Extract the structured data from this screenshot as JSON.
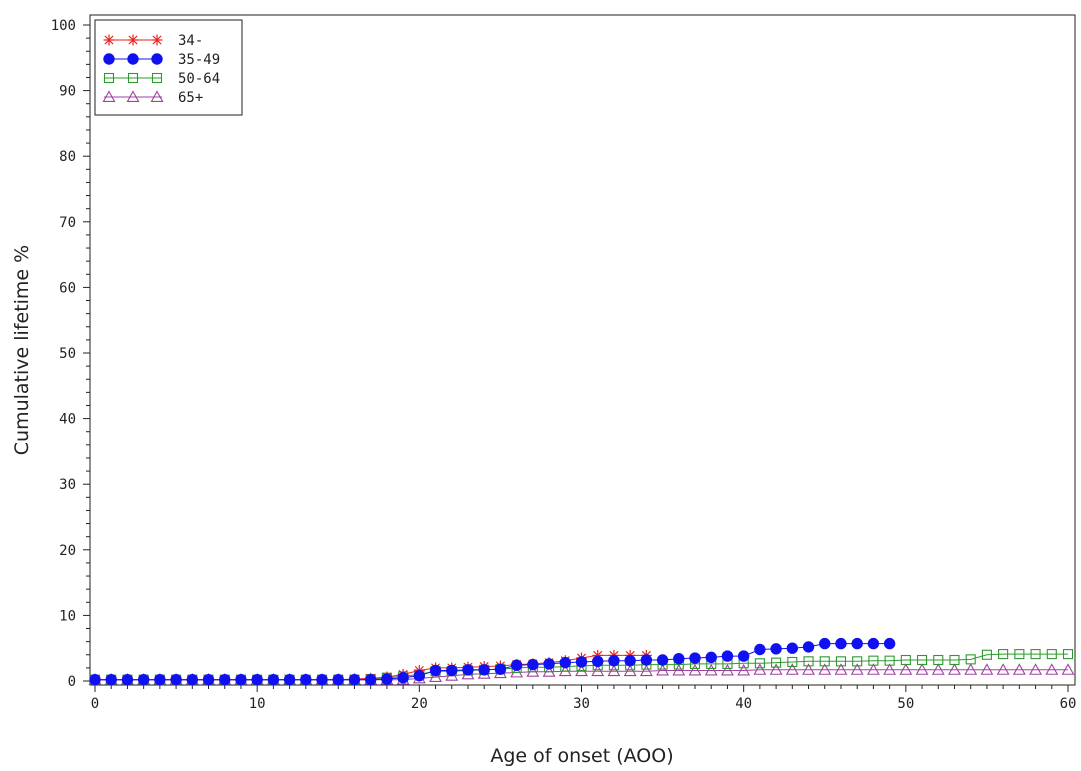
{
  "chart_data": {
    "type": "line",
    "xlabel": "Age of onset (AOO)",
    "ylabel": "Cumulative lifetime %",
    "xlim": [
      0,
      60
    ],
    "ylim": [
      0,
      100
    ],
    "xticks": [
      0,
      10,
      20,
      30,
      40,
      50,
      60
    ],
    "yticks": [
      0,
      10,
      20,
      30,
      40,
      50,
      60,
      70,
      80,
      90,
      100
    ],
    "grid": false,
    "legend_position": "top-left",
    "series": [
      {
        "name": "34-",
        "color": "#e8231f",
        "marker": "star",
        "x": [
          0,
          1,
          2,
          3,
          4,
          5,
          6,
          7,
          8,
          9,
          10,
          11,
          12,
          13,
          14,
          15,
          16,
          17,
          18,
          19,
          20,
          21,
          22,
          23,
          24,
          25,
          26,
          27,
          28,
          29,
          30,
          31,
          32,
          33,
          34
        ],
        "y": [
          0.2,
          0.2,
          0.2,
          0.2,
          0.2,
          0.2,
          0.2,
          0.2,
          0.2,
          0.2,
          0.2,
          0.2,
          0.2,
          0.2,
          0.2,
          0.2,
          0.3,
          0.4,
          0.6,
          1.0,
          1.6,
          2.0,
          2.0,
          2.1,
          2.2,
          2.3,
          2.5,
          2.6,
          2.8,
          3.1,
          3.5,
          3.9,
          3.9,
          3.9,
          3.9
        ]
      },
      {
        "name": "35-49",
        "color": "#1010f0",
        "marker": "filled-circle",
        "x": [
          0,
          1,
          2,
          3,
          4,
          5,
          6,
          7,
          8,
          9,
          10,
          11,
          12,
          13,
          14,
          15,
          16,
          17,
          18,
          19,
          20,
          21,
          22,
          23,
          24,
          25,
          26,
          27,
          28,
          29,
          30,
          31,
          32,
          33,
          34,
          35,
          36,
          37,
          38,
          39,
          40,
          41,
          42,
          43,
          44,
          45,
          46,
          47,
          48,
          49
        ],
        "y": [
          0.2,
          0.2,
          0.2,
          0.2,
          0.2,
          0.2,
          0.2,
          0.2,
          0.2,
          0.2,
          0.2,
          0.2,
          0.2,
          0.2,
          0.2,
          0.2,
          0.2,
          0.2,
          0.3,
          0.5,
          0.8,
          1.6,
          1.6,
          1.7,
          1.7,
          1.8,
          2.4,
          2.5,
          2.6,
          2.8,
          2.9,
          3.0,
          3.1,
          3.1,
          3.2,
          3.2,
          3.4,
          3.5,
          3.6,
          3.8,
          3.8,
          4.8,
          4.9,
          5.0,
          5.2,
          5.7,
          5.7,
          5.7,
          5.7,
          5.7
        ]
      },
      {
        "name": "50-64",
        "color": "#2e9a2e",
        "marker": "open-square",
        "x": [
          0,
          1,
          2,
          3,
          4,
          5,
          6,
          7,
          8,
          9,
          10,
          11,
          12,
          13,
          14,
          15,
          16,
          17,
          18,
          19,
          20,
          21,
          22,
          23,
          24,
          25,
          26,
          27,
          28,
          29,
          30,
          31,
          32,
          33,
          34,
          35,
          36,
          37,
          38,
          39,
          40,
          41,
          42,
          43,
          44,
          45,
          46,
          47,
          48,
          49,
          50,
          51,
          52,
          53,
          54,
          55,
          56,
          57,
          58,
          59,
          60
        ],
        "y": [
          0.2,
          0.2,
          0.2,
          0.2,
          0.2,
          0.2,
          0.2,
          0.2,
          0.2,
          0.2,
          0.2,
          0.2,
          0.2,
          0.2,
          0.2,
          0.2,
          0.2,
          0.3,
          0.5,
          0.7,
          1.0,
          1.5,
          1.5,
          1.6,
          1.7,
          1.8,
          2.0,
          2.1,
          2.1,
          2.2,
          2.3,
          2.4,
          2.4,
          2.4,
          2.5,
          2.5,
          2.5,
          2.6,
          2.6,
          2.6,
          2.7,
          2.7,
          2.8,
          2.9,
          3.0,
          3.0,
          3.0,
          3.0,
          3.1,
          3.1,
          3.2,
          3.2,
          3.2,
          3.2,
          3.3,
          4.0,
          4.1,
          4.1,
          4.1,
          4.1,
          4.1
        ]
      },
      {
        "name": "65+",
        "color": "#a040a0",
        "marker": "open-triangle",
        "x": [
          0,
          1,
          2,
          3,
          4,
          5,
          6,
          7,
          8,
          9,
          10,
          11,
          12,
          13,
          14,
          15,
          16,
          17,
          18,
          19,
          20,
          21,
          22,
          23,
          24,
          25,
          26,
          27,
          28,
          29,
          30,
          31,
          32,
          33,
          34,
          35,
          36,
          37,
          38,
          39,
          40,
          41,
          42,
          43,
          44,
          45,
          46,
          47,
          48,
          49,
          50,
          51,
          52,
          53,
          54,
          55,
          56,
          57,
          58,
          59,
          60
        ],
        "y": [
          0.2,
          0.2,
          0.2,
          0.2,
          0.2,
          0.2,
          0.2,
          0.2,
          0.2,
          0.2,
          0.2,
          0.2,
          0.2,
          0.2,
          0.2,
          0.2,
          0.2,
          0.2,
          0.2,
          0.2,
          0.4,
          0.6,
          0.8,
          1.0,
          1.1,
          1.2,
          1.3,
          1.4,
          1.4,
          1.5,
          1.5,
          1.5,
          1.5,
          1.5,
          1.5,
          1.6,
          1.6,
          1.6,
          1.6,
          1.6,
          1.6,
          1.7,
          1.7,
          1.7,
          1.7,
          1.7,
          1.7,
          1.7,
          1.7,
          1.7,
          1.7,
          1.7,
          1.7,
          1.7,
          1.7,
          1.7,
          1.7,
          1.7,
          1.7,
          1.7,
          1.7
        ]
      }
    ]
  }
}
